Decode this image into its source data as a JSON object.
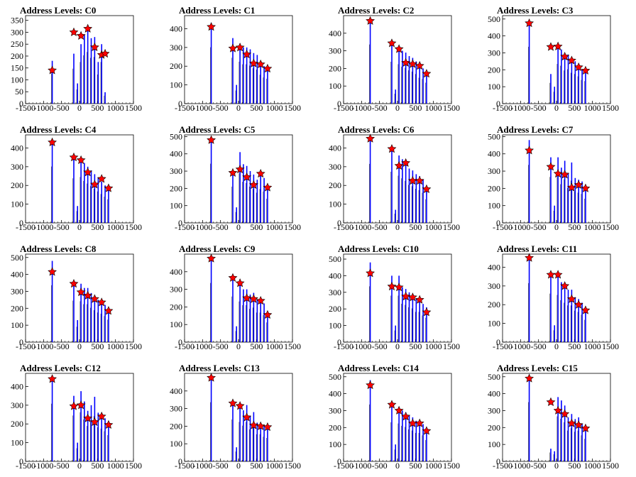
{
  "chart_data": {
    "type": "bar",
    "x_ticks": [
      -1500,
      -1000,
      -500,
      0,
      500,
      1000,
      1500
    ],
    "xlim": [
      -1500,
      1500
    ],
    "bar_color": "#0000ff",
    "marker_color": "#ff0000",
    "panels": [
      {
        "title": "Address Levels: C0",
        "ylim": [
          0,
          370
        ],
        "yticks": [
          0,
          50,
          100,
          150,
          200,
          250,
          300,
          350
        ],
        "x": [
          -758,
          -158,
          -55,
          42,
          136,
          230,
          326,
          422,
          520,
          616,
          712
        ],
        "y": [
          180,
          210,
          85,
          250,
          290,
          310,
          275,
          280,
          175,
          250,
          48
        ],
        "peaks_x": [
          -758,
          -158,
          42,
          230,
          422,
          616,
          712
        ],
        "peaks_y": [
          140,
          300,
          285,
          315,
          237,
          205,
          210
        ]
      },
      {
        "title": "Address Levels: C1",
        "ylim": [
          0,
          470
        ],
        "yticks": [
          0,
          100,
          200,
          300,
          400
        ],
        "x": [
          -758,
          -158,
          -55,
          42,
          136,
          230,
          326,
          422,
          520,
          616,
          712,
          808
        ],
        "y": [
          430,
          350,
          100,
          320,
          300,
          300,
          290,
          270,
          260,
          220,
          200,
          190
        ],
        "peaks_x": [
          -758,
          -158,
          42,
          230,
          422,
          616,
          808
        ],
        "peaks_y": [
          410,
          295,
          300,
          263,
          215,
          210,
          187
        ]
      },
      {
        "title": "Address Levels: C2",
        "ylim": [
          0,
          500
        ],
        "yticks": [
          0,
          100,
          200,
          300,
          400
        ],
        "x": [
          -758,
          -158,
          -55,
          42,
          136,
          230,
          326,
          422,
          520,
          616,
          712,
          808
        ],
        "y": [
          480,
          340,
          80,
          320,
          300,
          290,
          270,
          260,
          240,
          210,
          200,
          170
        ],
        "peaks_x": [
          -758,
          -158,
          42,
          230,
          422,
          616,
          808
        ],
        "peaks_y": [
          470,
          343,
          310,
          232,
          225,
          215,
          170
        ]
      },
      {
        "title": "Address Levels: C3",
        "ylim": [
          0,
          520
        ],
        "yticks": [
          0,
          100,
          200,
          300,
          400,
          500
        ],
        "x": [
          -758,
          -158,
          -55,
          42,
          136,
          230,
          326,
          422,
          520,
          616,
          712,
          808
        ],
        "y": [
          480,
          175,
          100,
          335,
          320,
          280,
          290,
          260,
          250,
          230,
          200,
          190
        ],
        "peaks_x": [
          -758,
          -158,
          42,
          230,
          422,
          616,
          808
        ],
        "peaks_y": [
          475,
          335,
          338,
          278,
          255,
          215,
          195
        ]
      },
      {
        "title": "Address Levels: C4",
        "ylim": [
          0,
          470
        ],
        "yticks": [
          0,
          100,
          200,
          300,
          400
        ],
        "x": [
          -758,
          -158,
          -55,
          42,
          136,
          230,
          326,
          422,
          520,
          616,
          712,
          808
        ],
        "y": [
          430,
          340,
          90,
          350,
          320,
          300,
          280,
          260,
          240,
          220,
          200,
          180
        ],
        "peaks_x": [
          -758,
          -158,
          42,
          230,
          422,
          616,
          808
        ],
        "peaks_y": [
          430,
          350,
          335,
          270,
          205,
          235,
          185
        ]
      },
      {
        "title": "Address Levels: C5",
        "ylim": [
          0,
          510
        ],
        "yticks": [
          0,
          100,
          200,
          300,
          400,
          500
        ],
        "x": [
          -758,
          -158,
          -55,
          42,
          136,
          230,
          326,
          422,
          520,
          616,
          712,
          808
        ],
        "y": [
          490,
          300,
          90,
          410,
          340,
          330,
          300,
          280,
          250,
          280,
          260,
          200
        ],
        "peaks_x": [
          -758,
          -158,
          42,
          230,
          422,
          616,
          808
        ],
        "peaks_y": [
          480,
          290,
          310,
          265,
          220,
          285,
          205
        ]
      },
      {
        "title": "Address Levels: C6",
        "ylim": [
          0,
          470
        ],
        "yticks": [
          0,
          100,
          200,
          300,
          400
        ],
        "x": [
          -758,
          -158,
          -55,
          42,
          136,
          230,
          326,
          422,
          520,
          616,
          712,
          808
        ],
        "y": [
          450,
          390,
          70,
          360,
          340,
          320,
          290,
          280,
          260,
          250,
          230,
          180
        ],
        "peaks_x": [
          -758,
          -158,
          42,
          230,
          422,
          616,
          808
        ],
        "peaks_y": [
          450,
          395,
          305,
          320,
          225,
          225,
          180
        ]
      },
      {
        "title": "Address Levels: C7",
        "ylim": [
          0,
          510
        ],
        "yticks": [
          0,
          100,
          200,
          300,
          400,
          500
        ],
        "x": [
          -758,
          -158,
          -55,
          42,
          136,
          230,
          326,
          422,
          520,
          616,
          712,
          808
        ],
        "y": [
          480,
          380,
          100,
          380,
          320,
          360,
          290,
          350,
          260,
          250,
          240,
          200
        ],
        "peaks_x": [
          -758,
          -158,
          42,
          230,
          422,
          616,
          808
        ],
        "peaks_y": [
          420,
          325,
          285,
          280,
          205,
          220,
          200
        ]
      },
      {
        "title": "Address Levels: C8",
        "ylim": [
          0,
          520
        ],
        "yticks": [
          0,
          100,
          200,
          300,
          400,
          500
        ],
        "x": [
          -758,
          -158,
          -55,
          42,
          136,
          230,
          326,
          422,
          520,
          616,
          712,
          808
        ],
        "y": [
          480,
          350,
          130,
          345,
          320,
          320,
          290,
          270,
          250,
          240,
          220,
          190
        ],
        "peaks_x": [
          -758,
          -158,
          42,
          230,
          422,
          616,
          808
        ],
        "peaks_y": [
          415,
          345,
          295,
          275,
          255,
          235,
          185
        ]
      },
      {
        "title": "Address Levels: C9",
        "ylim": [
          0,
          500
        ],
        "yticks": [
          0,
          100,
          200,
          300,
          400
        ],
        "x": [
          -758,
          -158,
          -55,
          42,
          136,
          230,
          326,
          422,
          520,
          616,
          712,
          808
        ],
        "y": [
          480,
          370,
          90,
          330,
          300,
          300,
          270,
          280,
          240,
          240,
          220,
          160
        ],
        "peaks_x": [
          -758,
          -158,
          42,
          230,
          422,
          616,
          808
        ],
        "peaks_y": [
          475,
          365,
          335,
          250,
          245,
          235,
          155
        ]
      },
      {
        "title": "Address Levels: C10",
        "ylim": [
          0,
          530
        ],
        "yticks": [
          0,
          100,
          200,
          300,
          400,
          500
        ],
        "x": [
          -758,
          -158,
          -55,
          42,
          136,
          230,
          326,
          422,
          520,
          616,
          712,
          808
        ],
        "y": [
          480,
          400,
          100,
          400,
          330,
          320,
          300,
          290,
          260,
          260,
          230,
          210
        ],
        "peaks_x": [
          -758,
          -158,
          42,
          230,
          422,
          616,
          808
        ],
        "peaks_y": [
          415,
          335,
          330,
          275,
          270,
          255,
          180
        ]
      },
      {
        "title": "Address Levels: C11",
        "ylim": [
          0,
          470
        ],
        "yticks": [
          0,
          100,
          200,
          300,
          400
        ],
        "x": [
          -758,
          -158,
          -55,
          42,
          136,
          230,
          326,
          422,
          520,
          616,
          712,
          808
        ],
        "y": [
          450,
          370,
          90,
          360,
          320,
          300,
          280,
          280,
          240,
          230,
          210,
          170
        ],
        "peaks_x": [
          -758,
          -158,
          42,
          230,
          422,
          616,
          808
        ],
        "peaks_y": [
          450,
          360,
          360,
          300,
          230,
          200,
          170
        ]
      },
      {
        "title": "Address Levels: C12",
        "ylim": [
          0,
          470
        ],
        "yticks": [
          0,
          100,
          200,
          300,
          400
        ],
        "x": [
          -758,
          -158,
          -55,
          42,
          136,
          230,
          326,
          422,
          520,
          616,
          712,
          808
        ],
        "y": [
          440,
          350,
          100,
          375,
          320,
          270,
          300,
          345,
          260,
          250,
          230,
          200
        ],
        "peaks_x": [
          -758,
          -158,
          42,
          230,
          422,
          616,
          808
        ],
        "peaks_y": [
          440,
          295,
          300,
          230,
          210,
          240,
          195
        ]
      },
      {
        "title": "Address Levels: C13",
        "ylim": [
          0,
          500
        ],
        "yticks": [
          0,
          100,
          200,
          300,
          400
        ],
        "x": [
          -758,
          -158,
          -55,
          42,
          136,
          230,
          326,
          422,
          520,
          616,
          712,
          808
        ],
        "y": [
          480,
          340,
          80,
          320,
          290,
          320,
          260,
          280,
          220,
          220,
          200,
          190
        ],
        "peaks_x": [
          -758,
          -158,
          42,
          230,
          422,
          616,
          808
        ],
        "peaks_y": [
          475,
          330,
          315,
          250,
          205,
          200,
          195
        ]
      },
      {
        "title": "Address Levels: C14",
        "ylim": [
          0,
          520
        ],
        "yticks": [
          0,
          100,
          200,
          300,
          400,
          500
        ],
        "x": [
          -758,
          -158,
          -55,
          42,
          136,
          230,
          326,
          422,
          520,
          616,
          712,
          808
        ],
        "y": [
          480,
          330,
          100,
          320,
          300,
          290,
          270,
          260,
          240,
          240,
          220,
          180
        ],
        "peaks_x": [
          -758,
          -158,
          42,
          230,
          422,
          616,
          808
        ],
        "peaks_y": [
          450,
          335,
          300,
          265,
          225,
          225,
          180
        ]
      },
      {
        "title": "Address Levels: C15",
        "ylim": [
          0,
          520
        ],
        "yticks": [
          0,
          100,
          200,
          300,
          400,
          500
        ],
        "x": [
          -758,
          -158,
          -55,
          42,
          136,
          230,
          326,
          422,
          520,
          616,
          712,
          808
        ],
        "y": [
          500,
          75,
          60,
          380,
          360,
          330,
          260,
          280,
          250,
          260,
          220,
          190
        ],
        "peaks_x": [
          -758,
          -158,
          42,
          230,
          422,
          616,
          808
        ],
        "peaks_y": [
          490,
          350,
          300,
          280,
          225,
          215,
          195
        ]
      }
    ]
  }
}
